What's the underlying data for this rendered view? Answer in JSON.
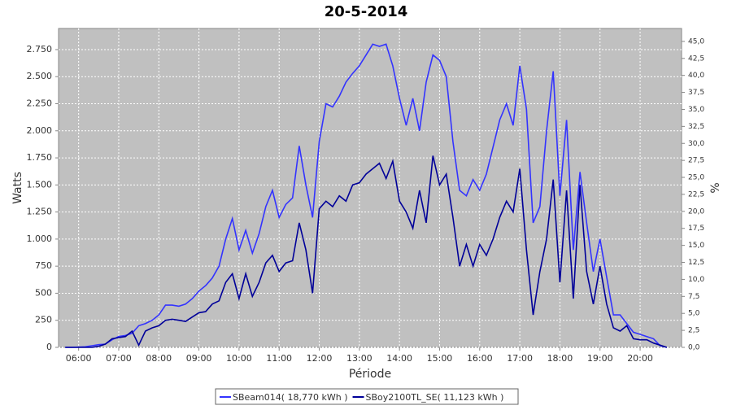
{
  "chart_data": {
    "type": "line",
    "title": "20-5-2014",
    "x_label": "Période",
    "y_label": "Watts",
    "y2_label": "%",
    "x": [
      "05:40",
      "05:50",
      "06:00",
      "06:10",
      "06:20",
      "06:30",
      "06:40",
      "06:50",
      "07:00",
      "07:10",
      "07:20",
      "07:30",
      "07:40",
      "07:50",
      "08:00",
      "08:10",
      "08:20",
      "08:30",
      "08:40",
      "08:50",
      "09:00",
      "09:10",
      "09:20",
      "09:30",
      "09:40",
      "09:50",
      "10:00",
      "10:10",
      "10:20",
      "10:30",
      "10:40",
      "10:50",
      "11:00",
      "11:10",
      "11:20",
      "11:30",
      "11:40",
      "11:50",
      "12:00",
      "12:10",
      "12:20",
      "12:30",
      "12:40",
      "12:50",
      "13:00",
      "13:10",
      "13:20",
      "13:30",
      "13:40",
      "13:50",
      "14:00",
      "14:10",
      "14:20",
      "14:30",
      "14:40",
      "14:50",
      "15:00",
      "15:10",
      "15:20",
      "15:30",
      "15:40",
      "15:50",
      "16:00",
      "16:10",
      "16:20",
      "16:30",
      "16:40",
      "16:50",
      "17:00",
      "17:10",
      "17:20",
      "17:30",
      "17:40",
      "17:50",
      "18:00",
      "18:10",
      "18:20",
      "18:30",
      "18:40",
      "18:50",
      "19:00",
      "19:10",
      "19:20",
      "19:30",
      "19:40",
      "19:50",
      "20:00",
      "20:10",
      "20:20",
      "20:30",
      "20:40"
    ],
    "series": [
      {
        "name": "SBeam014( 18,770 kWh )",
        "color": "#3333ff",
        "values": [
          0,
          0,
          2,
          5,
          15,
          25,
          30,
          70,
          100,
          110,
          130,
          200,
          220,
          250,
          300,
          390,
          390,
          380,
          400,
          450,
          520,
          570,
          640,
          750,
          1000,
          1190,
          900,
          1080,
          870,
          1050,
          1300,
          1450,
          1200,
          1320,
          1380,
          1860,
          1500,
          1200,
          1900,
          2250,
          2220,
          2320,
          2450,
          2530,
          2600,
          2700,
          2800,
          2780,
          2800,
          2600,
          2300,
          2050,
          2300,
          2000,
          2450,
          2700,
          2650,
          2500,
          1900,
          1450,
          1400,
          1550,
          1450,
          1600,
          1850,
          2100,
          2250,
          2050,
          2600,
          2200,
          1150,
          1300,
          2000,
          2550,
          1400,
          2100,
          900,
          1620,
          1150,
          700,
          1000,
          650,
          300,
          300,
          220,
          140,
          120,
          100,
          80,
          15,
          0
        ]
      },
      {
        "name": "SBoy2100TL_SE( 11,123 kWh )",
        "color": "#000099",
        "values": [
          0,
          0,
          0,
          0,
          0,
          10,
          30,
          80,
          90,
          100,
          150,
          20,
          150,
          180,
          200,
          250,
          260,
          250,
          240,
          280,
          320,
          330,
          400,
          430,
          600,
          680,
          450,
          680,
          470,
          600,
          780,
          850,
          700,
          780,
          800,
          1150,
          900,
          500,
          1280,
          1350,
          1300,
          1400,
          1350,
          1500,
          1520,
          1600,
          1650,
          1700,
          1560,
          1720,
          1350,
          1250,
          1100,
          1450,
          1150,
          1770,
          1500,
          1600,
          1200,
          750,
          950,
          750,
          950,
          850,
          1000,
          1200,
          1350,
          1250,
          1650,
          900,
          300,
          700,
          1000,
          1550,
          600,
          1450,
          450,
          1500,
          700,
          400,
          750,
          400,
          180,
          150,
          200,
          80,
          70,
          70,
          40,
          20,
          0
        ]
      }
    ],
    "xlim": [
      "05:30",
      "21:02"
    ],
    "xticks": [
      "06:00",
      "07:00",
      "08:00",
      "09:00",
      "10:00",
      "11:00",
      "12:00",
      "13:00",
      "14:00",
      "15:00",
      "16:00",
      "17:00",
      "18:00",
      "19:00",
      "20:00"
    ],
    "ylim": [
      0,
      2945
    ],
    "yticks": [
      0,
      250,
      500,
      750,
      {
        "value": 1000,
        "label": "1.000"
      },
      {
        "value": 1250,
        "label": "1.250"
      },
      {
        "value": 1500,
        "label": "1.500"
      },
      {
        "value": 1750,
        "label": "1.750"
      },
      {
        "value": 2000,
        "label": "2.000"
      },
      {
        "value": 2250,
        "label": "2.250"
      },
      {
        "value": 2500,
        "label": "2.500"
      },
      {
        "value": 2750,
        "label": "2.750"
      }
    ],
    "y2lim": [
      0,
      46.9
    ],
    "y2ticks": [
      {
        "value": 0,
        "label": "0,0"
      },
      {
        "value": 2.5,
        "label": "2,5"
      },
      {
        "value": 5,
        "label": "5,0"
      },
      {
        "value": 7.5,
        "label": "7,5"
      },
      {
        "value": 10,
        "label": "10,0"
      },
      {
        "value": 12.5,
        "label": "12,5"
      },
      {
        "value": 15,
        "label": "15,0"
      },
      {
        "value": 17.5,
        "label": "17,5"
      },
      {
        "value": 20,
        "label": "20,0"
      },
      {
        "value": 22.5,
        "label": "22,5"
      },
      {
        "value": 25,
        "label": "25,0"
      },
      {
        "value": 27.5,
        "label": "27,5"
      },
      {
        "value": 30,
        "label": "30,0"
      },
      {
        "value": 32.5,
        "label": "32,5"
      },
      {
        "value": 35,
        "label": "35,0"
      },
      {
        "value": 37.5,
        "label": "37,5"
      },
      {
        "value": 40,
        "label": "40,0"
      },
      {
        "value": 42.5,
        "label": "42,5"
      },
      {
        "value": 45,
        "label": "45,0"
      }
    ],
    "grid": true,
    "legend": "bottom"
  }
}
